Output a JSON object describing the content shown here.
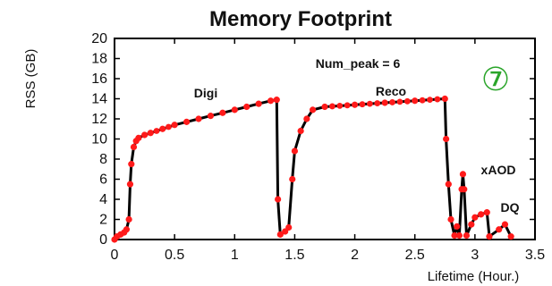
{
  "chart_data": {
    "type": "line",
    "title": "Memory Footprint",
    "xlabel": "Lifetime  (Hour.)",
    "ylabel": "RSS (GB)",
    "xlim": [
      0,
      3.5
    ],
    "ylim": [
      0,
      20
    ],
    "xticks": [
      "0",
      "0.5",
      "1",
      "1.5",
      "2",
      "2.5",
      "3",
      "3.5"
    ],
    "yticks": [
      "0",
      "2",
      "4",
      "6",
      "8",
      "10",
      "12",
      "14",
      "16",
      "18",
      "20"
    ],
    "grid": false,
    "legend": "none",
    "line_color": "#000000",
    "marker_color": "#ff1a1a",
    "annotations": {
      "num_peak": "Num_peak = 6",
      "digi": "Digi",
      "reco": "Reco",
      "xaod": "xAOD",
      "dq": "DQ",
      "badge": "⑦"
    },
    "series": [
      {
        "values": [
          [
            0.0,
            0.0
          ],
          [
            0.02,
            0.3
          ],
          [
            0.05,
            0.5
          ],
          [
            0.08,
            0.7
          ],
          [
            0.1,
            1.0
          ],
          [
            0.12,
            2.0
          ],
          [
            0.13,
            5.5
          ],
          [
            0.14,
            7.5
          ],
          [
            0.16,
            9.2
          ],
          [
            0.18,
            9.8
          ],
          [
            0.2,
            10.1
          ],
          [
            0.25,
            10.4
          ],
          [
            0.3,
            10.6
          ],
          [
            0.4,
            11.0
          ],
          [
            0.5,
            11.4
          ],
          [
            0.6,
            11.7
          ],
          [
            0.7,
            12.0
          ],
          [
            0.8,
            12.3
          ],
          [
            0.9,
            12.6
          ],
          [
            1.0,
            12.9
          ],
          [
            1.1,
            13.2
          ],
          [
            1.2,
            13.5
          ],
          [
            1.3,
            13.8
          ],
          [
            1.35,
            13.9
          ],
          [
            1.36,
            4.0
          ],
          [
            1.38,
            0.5
          ],
          [
            1.42,
            0.8
          ],
          [
            1.45,
            1.2
          ],
          [
            1.48,
            6.0
          ],
          [
            1.5,
            8.8
          ],
          [
            1.55,
            10.8
          ],
          [
            1.6,
            12.0
          ],
          [
            1.65,
            12.9
          ],
          [
            1.75,
            13.2
          ],
          [
            2.0,
            13.4
          ],
          [
            2.25,
            13.6
          ],
          [
            2.5,
            13.8
          ],
          [
            2.75,
            14.0
          ],
          [
            2.76,
            10.0
          ],
          [
            2.78,
            5.5
          ],
          [
            2.8,
            2.0
          ],
          [
            2.83,
            0.4
          ],
          [
            2.85,
            1.3
          ],
          [
            2.87,
            0.4
          ],
          [
            2.89,
            5.0
          ],
          [
            2.9,
            6.5
          ],
          [
            2.91,
            5.0
          ],
          [
            2.93,
            0.4
          ],
          [
            2.97,
            1.5
          ],
          [
            3.0,
            2.2
          ],
          [
            3.05,
            2.5
          ],
          [
            3.1,
            2.7
          ],
          [
            3.12,
            0.3
          ],
          [
            3.2,
            1.0
          ],
          [
            3.25,
            1.5
          ],
          [
            3.3,
            0.3
          ]
        ]
      }
    ]
  }
}
